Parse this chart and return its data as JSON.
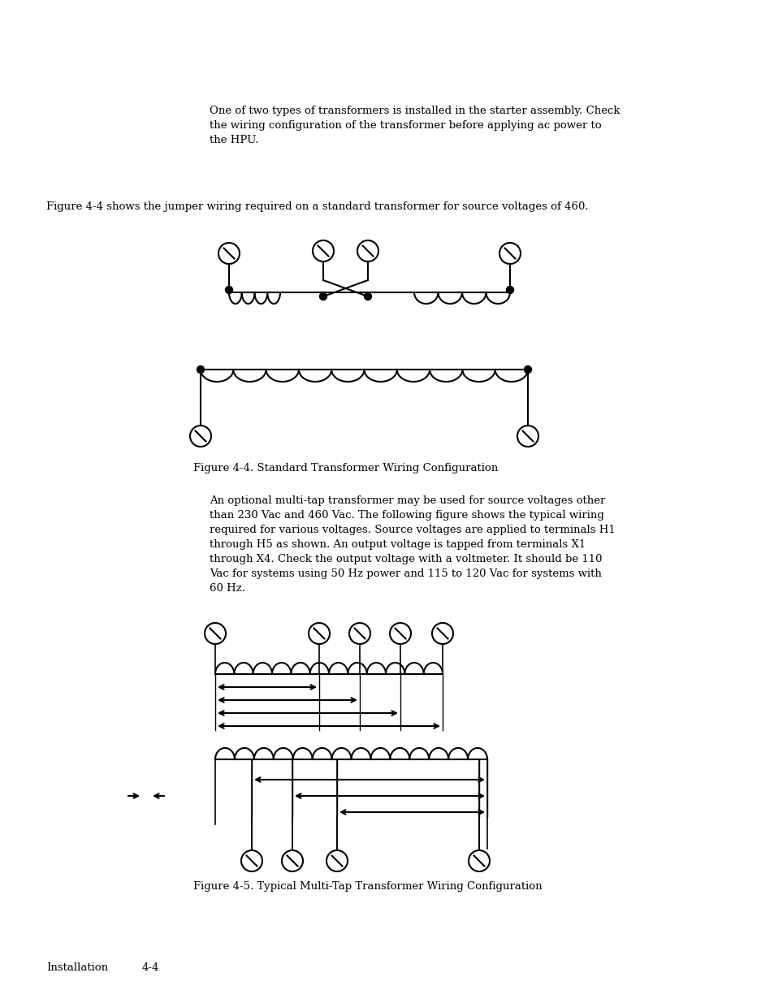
{
  "bg_color": "#ffffff",
  "text_color": "#000000",
  "para1": "One of two types of transformers is installed in the starter assembly. Check\nthe wiring configuration of the transformer before applying ac power to\nthe HPU.",
  "para2": "Figure 4-4 shows the jumper wiring required on a standard transformer for source voltages of 460.",
  "caption1": "Figure 4-4. Standard Transformer Wiring Configuration",
  "para3": "An optional multi-tap transformer may be used for source voltages other\nthan 230 Vac and 460 Vac. The following figure shows the typical wiring\nrequired for various voltages. Source voltages are applied to terminals H1\nthrough H5 as shown. An output voltage is tapped from terminals X1\nthrough X4. Check the output voltage with a voltmeter. It should be 110\nVac for systems using 50 Hz power and 115 to 120 Vac for systems with\n60 Hz.",
  "caption2": "Figure 4-5. Typical Multi-Tap Transformer Wiring Configuration",
  "footer_left": "Installation",
  "footer_right": "4-4"
}
